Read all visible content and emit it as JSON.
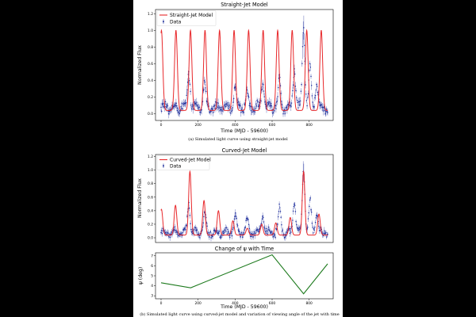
{
  "chart_data": [
    {
      "id": "straight",
      "type": "line",
      "title": "Straight-Jet Model",
      "xlabel": "Time (MJD - 59600)",
      "ylabel": "Normalized Flux",
      "xlim": [
        -30,
        930
      ],
      "ylim": [
        -0.08,
        1.25
      ],
      "xticks": [
        0,
        200,
        400,
        600,
        800
      ],
      "yticks": [
        0.0,
        0.2,
        0.4,
        0.6,
        0.8,
        1.0,
        1.2
      ],
      "legend": [
        "Straight-Jet Model",
        "Data"
      ],
      "legend_position": "top-left",
      "caption": "(a) Simulated light curve using straight-jet model",
      "model": {
        "name": "Straight-Jet Model",
        "color": "#e8282b",
        "period_days": 78.5,
        "first_peak": 2,
        "peak_flux": 1.0,
        "base_flux": 0.04,
        "x_end": 900
      },
      "data_series": {
        "name": "Data",
        "color": "#1f2f9c",
        "flares": [
          {
            "t": 150,
            "amp": 0.45
          },
          {
            "t": 235,
            "amp": 0.28
          },
          {
            "t": 400,
            "amp": 0.25
          },
          {
            "t": 465,
            "amp": 0.2
          },
          {
            "t": 550,
            "amp": 0.3
          },
          {
            "t": 640,
            "amp": 0.35
          },
          {
            "t": 720,
            "amp": 0.48
          },
          {
            "t": 770,
            "amp": 0.95
          },
          {
            "t": 805,
            "amp": 0.45
          },
          {
            "t": 840,
            "amp": 0.3
          }
        ]
      }
    },
    {
      "id": "curved",
      "type": "line",
      "title": "Curved-Jet Model",
      "xlabel": "",
      "ylabel": "Normalized Flux",
      "xlim": [
        -30,
        930
      ],
      "ylim": [
        -0.07,
        1.23
      ],
      "xticks": [],
      "yticks": [
        0.0,
        0.2,
        0.4,
        0.6,
        0.8,
        1.0,
        1.2
      ],
      "legend": [
        "Curved-Jet Model",
        "Data"
      ],
      "legend_position": "top-left",
      "model": {
        "name": "Curved-Jet Model",
        "color": "#e8282b",
        "base_flux": 0.04,
        "x_end": 900,
        "peaks": [
          {
            "t": 2,
            "amp": 0.42
          },
          {
            "t": 78,
            "amp": 0.48
          },
          {
            "t": 156,
            "amp": 0.98
          },
          {
            "t": 232,
            "amp": 0.55
          },
          {
            "t": 310,
            "amp": 0.4
          },
          {
            "t": 388,
            "amp": 0.25
          },
          {
            "t": 466,
            "amp": 0.14
          },
          {
            "t": 544,
            "amp": 0.2
          },
          {
            "t": 620,
            "amp": 0.22
          },
          {
            "t": 698,
            "amp": 0.3
          },
          {
            "t": 770,
            "amp": 0.98
          },
          {
            "t": 853,
            "amp": 0.35
          }
        ]
      },
      "data_series": {
        "name": "Data",
        "color": "#1f2f9c",
        "flares": [
          {
            "t": 150,
            "amp": 0.45
          },
          {
            "t": 235,
            "amp": 0.28
          },
          {
            "t": 400,
            "amp": 0.25
          },
          {
            "t": 465,
            "amp": 0.2
          },
          {
            "t": 550,
            "amp": 0.3
          },
          {
            "t": 640,
            "amp": 0.35
          },
          {
            "t": 720,
            "amp": 0.48
          },
          {
            "t": 770,
            "amp": 0.95
          },
          {
            "t": 805,
            "amp": 0.45
          },
          {
            "t": 840,
            "amp": 0.3
          }
        ]
      }
    },
    {
      "id": "psi",
      "type": "line",
      "title": "Change of ψ with Time",
      "xlabel": "Time (MJD - 59600)",
      "ylabel": "ψ (deg)",
      "xlim": [
        -30,
        930
      ],
      "ylim": [
        2.7,
        7.3
      ],
      "xticks": [
        0,
        200,
        400,
        600,
        800
      ],
      "yticks": [
        3,
        4,
        5,
        6,
        7
      ],
      "series": [
        {
          "name": "ψ",
          "color": "#1d7a1d",
          "x": [
            0,
            160,
            600,
            770,
            900
          ],
          "y": [
            4.3,
            3.8,
            7.1,
            3.2,
            6.2
          ]
        }
      ],
      "caption": "(b) Simulated light curve using curved-jet model and variation of viewing angle of the jet with time"
    }
  ]
}
